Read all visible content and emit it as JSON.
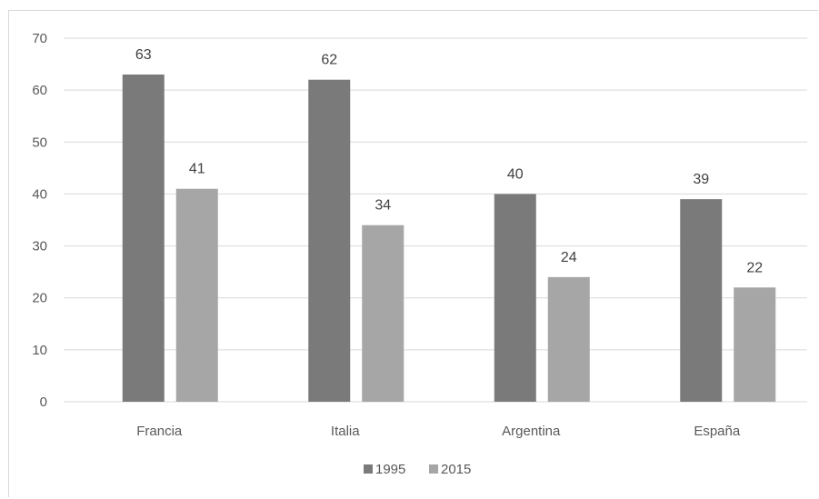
{
  "chart_data": {
    "type": "bar",
    "title": "",
    "xlabel": "",
    "ylabel": "",
    "categories": [
      "Francia",
      "Italia",
      "Argentina",
      "España"
    ],
    "series": [
      {
        "name": "1995",
        "values": [
          63,
          62,
          40,
          39
        ],
        "color": "#7a7a7a"
      },
      {
        "name": "2015",
        "values": [
          41,
          34,
          24,
          22
        ],
        "color": "#a6a6a6"
      }
    ],
    "ylim": [
      0,
      70
    ],
    "yticks": [
      0,
      10,
      20,
      30,
      40,
      50,
      60,
      70
    ],
    "grid": true,
    "legend": "bottom",
    "data_labels": true,
    "gridline_color": "#d9d9d9"
  }
}
